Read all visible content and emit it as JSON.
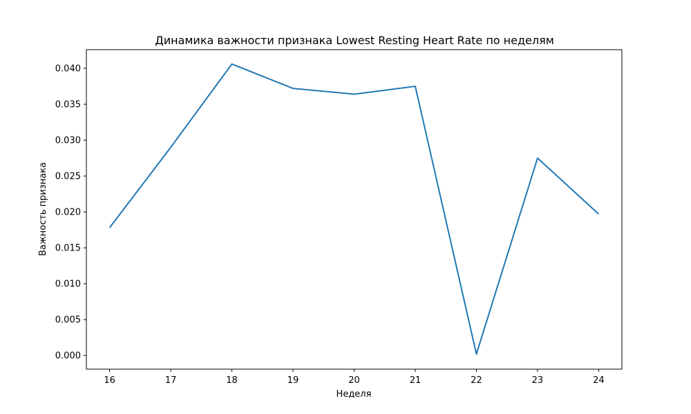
{
  "chart_data": {
    "type": "line",
    "title": "Динамика важности признака Lowest Resting Heart Rate по неделям",
    "xlabel": "Неделя",
    "ylabel": "Важность признака",
    "x": [
      16,
      17,
      18,
      19,
      20,
      21,
      22,
      23,
      24
    ],
    "x_ticks": [
      "16",
      "17",
      "18",
      "19",
      "20",
      "21",
      "22",
      "23",
      "24"
    ],
    "y_ticks": [
      "0.000",
      "0.005",
      "0.010",
      "0.015",
      "0.020",
      "0.025",
      "0.030",
      "0.035",
      "0.040"
    ],
    "xlim": [
      15.62,
      24.38
    ],
    "ylim": [
      -0.0019,
      0.0426
    ],
    "grid": false,
    "series": [
      {
        "color": "#1f77b4",
        "values": [
          0.0178,
          0.029,
          0.0406,
          0.0372,
          0.0364,
          0.0375,
          0.0002,
          0.0275,
          0.0197
        ]
      }
    ]
  }
}
